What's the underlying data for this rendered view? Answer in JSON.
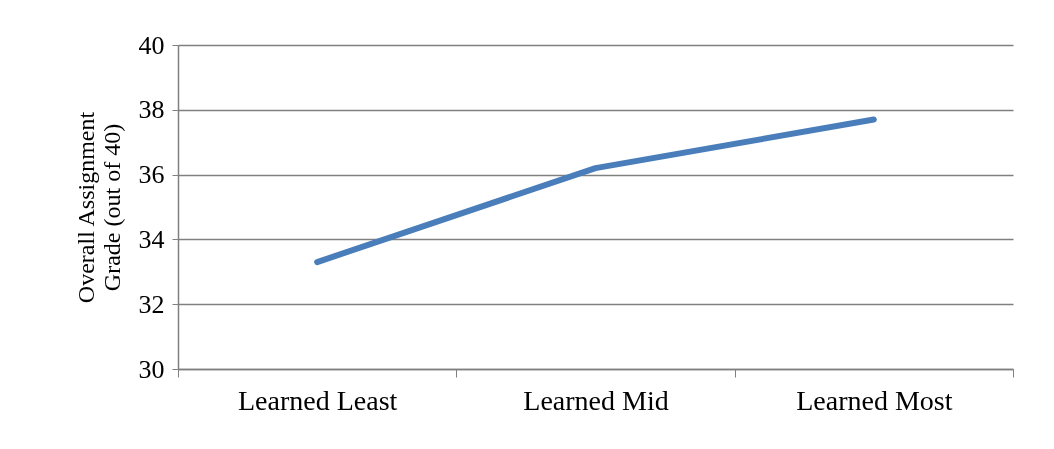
{
  "chart_data": {
    "type": "line",
    "ylabel": "Overall Assignment\nGrade (out of 40)",
    "categories": [
      "Learned Least",
      "Learned Mid",
      "Learned Most"
    ],
    "series": [
      {
        "color": "#4a7ebb",
        "values": [
          33.3,
          36.2,
          37.7
        ]
      }
    ],
    "ylim": [
      30,
      40
    ],
    "yticks": [
      30,
      32,
      34,
      36,
      38,
      40
    ],
    "grid": "y",
    "legend": false,
    "marker": "none",
    "line_style": "solid"
  }
}
